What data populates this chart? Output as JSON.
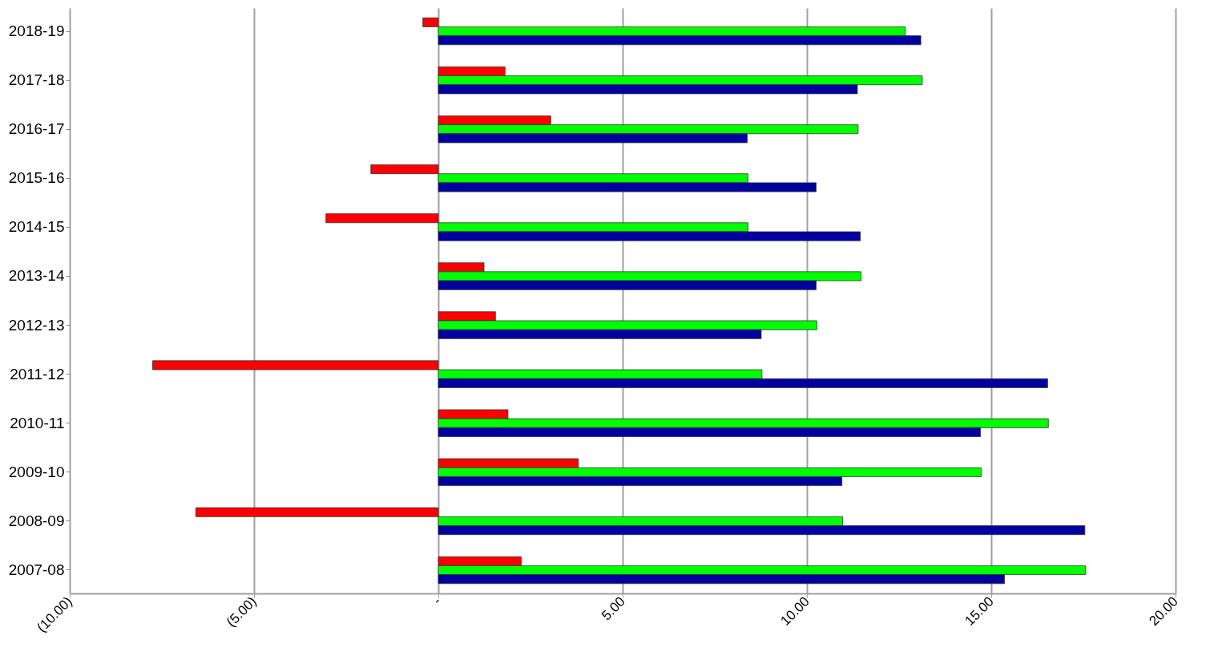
{
  "chart_data": {
    "type": "bar",
    "orientation": "horizontal",
    "categories": [
      "2018-19",
      "2017-18",
      "2016-17",
      "2015-16",
      "2014-15",
      "2013-14",
      "2012-13",
      "2011-12",
      "2010-11",
      "2009-10",
      "2008-09",
      "2007-08"
    ],
    "series": [
      {
        "color": "#ff0000",
        "values": [
          -0.42,
          1.81,
          3.05,
          -1.83,
          -3.05,
          1.24,
          1.55,
          -7.75,
          1.89,
          3.8,
          -6.58,
          2.25
        ]
      },
      {
        "color": "#00ff00",
        "values": [
          12.67,
          13.13,
          11.39,
          8.4,
          8.4,
          11.47,
          10.27,
          8.78,
          16.55,
          14.73,
          10.97,
          17.56
        ]
      },
      {
        "color": "#0000a0",
        "values": [
          13.09,
          11.37,
          8.38,
          10.25,
          11.45,
          10.25,
          8.76,
          16.53,
          14.71,
          10.95,
          17.54,
          15.36
        ]
      }
    ],
    "xlim": [
      -10,
      20
    ],
    "xticks": [
      {
        "value": -10,
        "label": "(10.00)"
      },
      {
        "value": -5,
        "label": "(5.00)"
      },
      {
        "value": 0,
        "label": "-"
      },
      {
        "value": 5,
        "label": "5.00"
      },
      {
        "value": 10,
        "label": "10.00"
      },
      {
        "value": 15,
        "label": "15.00"
      },
      {
        "value": 20,
        "label": "20.00"
      }
    ],
    "grid": "x",
    "legend": false
  }
}
